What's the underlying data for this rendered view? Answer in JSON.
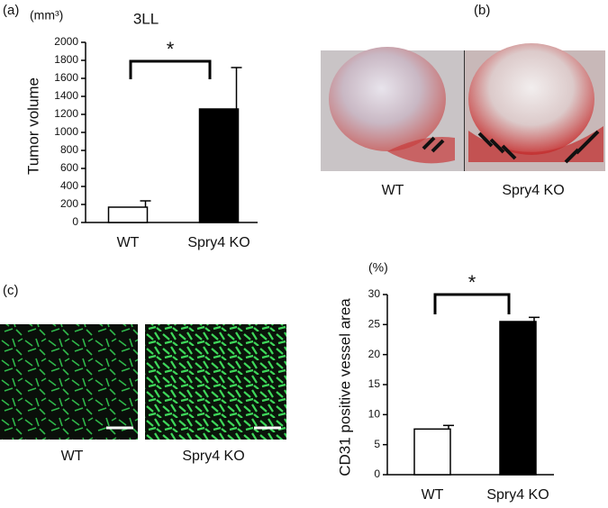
{
  "panels": {
    "a": "(a)",
    "b": "(b)",
    "c": "(c)"
  },
  "photo_captions": {
    "b": [
      "WT",
      "Spry4 KO"
    ],
    "c": [
      "WT",
      "Spry4 KO"
    ]
  },
  "chart_data": [
    {
      "type": "bar",
      "title": "3LL",
      "y_label": "Tumor volume",
      "y_unit": "(mm³)",
      "categories": [
        "WT",
        "Spry4 KO"
      ],
      "values": [
        170,
        1260
      ],
      "errors": [
        70,
        460
      ],
      "colors": [
        "#ffffff",
        "#000000"
      ],
      "ylim": [
        0,
        2000
      ],
      "yticks": [
        0,
        200,
        400,
        600,
        800,
        1000,
        1200,
        1400,
        1600,
        1800,
        2000
      ],
      "annotation": "*"
    },
    {
      "type": "bar",
      "y_label": "CD31 positive vessel area",
      "y_unit": "(%)",
      "categories": [
        "WT",
        "Spry4 KO"
      ],
      "values": [
        7.6,
        25.5
      ],
      "errors": [
        0.6,
        0.7
      ],
      "colors": [
        "#ffffff",
        "#000000"
      ],
      "ylim": [
        0,
        30
      ],
      "yticks": [
        0,
        5,
        10,
        15,
        20,
        25,
        30
      ],
      "annotation": "*"
    }
  ]
}
